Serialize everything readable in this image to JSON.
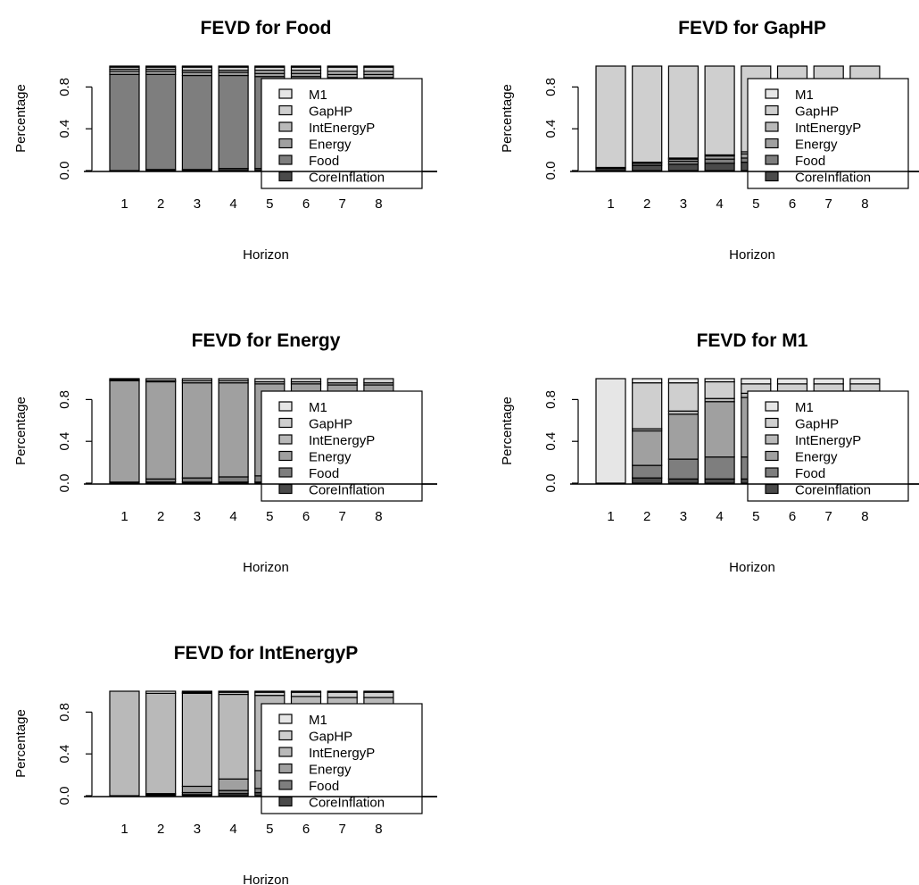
{
  "legend_labels": [
    "M1",
    "GapHP",
    "IntEnergyP",
    "Energy",
    "Food",
    "CoreInflation"
  ],
  "colors": {
    "M1": "#e6e6e6",
    "GapHP": "#cfcfcf",
    "IntEnergyP": "#b9b9b9",
    "Energy": "#a0a0a0",
    "Food": "#7e7e7e",
    "CoreInflation": "#4a4a4a"
  },
  "chart_data": [
    {
      "type": "bar",
      "stacked": true,
      "title": "FEVD for Food",
      "xlabel": "Horizon",
      "ylabel": "Percentage",
      "categories": [
        "1",
        "2",
        "3",
        "4",
        "5",
        "6",
        "7",
        "8"
      ],
      "yticks": [
        "0.0",
        "0.4",
        "0.8"
      ],
      "ylim": [
        0,
        1
      ],
      "legend_position": "bottom-right",
      "series": [
        {
          "name": "CoreInflation",
          "values": [
            0.0,
            0.01,
            0.01,
            0.02,
            0.02,
            0.02,
            0.02,
            0.02
          ]
        },
        {
          "name": "Food",
          "values": [
            0.92,
            0.91,
            0.9,
            0.89,
            0.88,
            0.88,
            0.87,
            0.87
          ]
        },
        {
          "name": "Energy",
          "values": [
            0.03,
            0.03,
            0.03,
            0.03,
            0.03,
            0.03,
            0.03,
            0.03
          ]
        },
        {
          "name": "IntEnergyP",
          "values": [
            0.02,
            0.02,
            0.02,
            0.02,
            0.03,
            0.03,
            0.03,
            0.03
          ]
        },
        {
          "name": "GapHP",
          "values": [
            0.02,
            0.02,
            0.03,
            0.03,
            0.03,
            0.03,
            0.04,
            0.04
          ]
        },
        {
          "name": "M1",
          "values": [
            0.01,
            0.01,
            0.01,
            0.01,
            0.01,
            0.01,
            0.01,
            0.01
          ]
        }
      ]
    },
    {
      "type": "bar",
      "stacked": true,
      "title": "FEVD for GapHP",
      "xlabel": "Horizon",
      "ylabel": "Percentage",
      "categories": [
        "1",
        "2",
        "3",
        "4",
        "5",
        "6",
        "7",
        "8"
      ],
      "yticks": [
        "0.0",
        "0.4",
        "0.8"
      ],
      "ylim": [
        0,
        1
      ],
      "legend_position": "bottom-right",
      "series": [
        {
          "name": "CoreInflation",
          "values": [
            0.02,
            0.05,
            0.06,
            0.07,
            0.08,
            0.08,
            0.08,
            0.08
          ]
        },
        {
          "name": "Food",
          "values": [
            0.01,
            0.02,
            0.03,
            0.04,
            0.04,
            0.05,
            0.05,
            0.05
          ]
        },
        {
          "name": "Energy",
          "values": [
            0.0,
            0.01,
            0.02,
            0.03,
            0.04,
            0.04,
            0.05,
            0.05
          ]
        },
        {
          "name": "IntEnergyP",
          "values": [
            0.0,
            0.0,
            0.01,
            0.01,
            0.02,
            0.02,
            0.02,
            0.02
          ]
        },
        {
          "name": "GapHP",
          "values": [
            0.97,
            0.92,
            0.88,
            0.85,
            0.82,
            0.81,
            0.8,
            0.8
          ]
        },
        {
          "name": "M1",
          "values": [
            0.0,
            0.0,
            0.0,
            0.0,
            0.0,
            0.0,
            0.0,
            0.0
          ]
        }
      ]
    },
    {
      "type": "bar",
      "stacked": true,
      "title": "FEVD for Energy",
      "xlabel": "Horizon",
      "ylabel": "Percentage",
      "categories": [
        "1",
        "2",
        "3",
        "4",
        "5",
        "6",
        "7",
        "8"
      ],
      "yticks": [
        "0.0",
        "0.4",
        "0.8"
      ],
      "ylim": [
        0,
        1
      ],
      "legend_position": "bottom-right",
      "series": [
        {
          "name": "CoreInflation",
          "values": [
            0.0,
            0.01,
            0.01,
            0.01,
            0.01,
            0.01,
            0.01,
            0.01
          ]
        },
        {
          "name": "Food",
          "values": [
            0.01,
            0.03,
            0.04,
            0.05,
            0.06,
            0.06,
            0.06,
            0.06
          ]
        },
        {
          "name": "Energy",
          "values": [
            0.97,
            0.93,
            0.91,
            0.9,
            0.88,
            0.88,
            0.87,
            0.87
          ]
        },
        {
          "name": "IntEnergyP",
          "values": [
            0.01,
            0.01,
            0.02,
            0.02,
            0.02,
            0.02,
            0.02,
            0.02
          ]
        },
        {
          "name": "GapHP",
          "values": [
            0.01,
            0.02,
            0.02,
            0.02,
            0.03,
            0.03,
            0.04,
            0.04
          ]
        },
        {
          "name": "M1",
          "values": [
            0.0,
            0.0,
            0.0,
            0.0,
            0.0,
            0.0,
            0.0,
            0.0
          ]
        }
      ]
    },
    {
      "type": "bar",
      "stacked": true,
      "title": "FEVD for M1",
      "xlabel": "Horizon",
      "ylabel": "Percentage",
      "categories": [
        "1",
        "2",
        "3",
        "4",
        "5",
        "6",
        "7",
        "8"
      ],
      "yticks": [
        "0.0",
        "0.4",
        "0.8"
      ],
      "ylim": [
        0,
        1
      ],
      "legend_position": "bottom-right",
      "series": [
        {
          "name": "CoreInflation",
          "values": [
            0.0,
            0.05,
            0.04,
            0.04,
            0.04,
            0.04,
            0.04,
            0.04
          ]
        },
        {
          "name": "Food",
          "values": [
            0.0,
            0.12,
            0.19,
            0.21,
            0.21,
            0.21,
            0.21,
            0.21
          ]
        },
        {
          "name": "Energy",
          "values": [
            0.0,
            0.33,
            0.43,
            0.53,
            0.57,
            0.58,
            0.58,
            0.58
          ]
        },
        {
          "name": "IntEnergyP",
          "values": [
            0.0,
            0.02,
            0.03,
            0.03,
            0.04,
            0.04,
            0.05,
            0.05
          ]
        },
        {
          "name": "GapHP",
          "values": [
            0.0,
            0.44,
            0.27,
            0.16,
            0.09,
            0.08,
            0.07,
            0.07
          ]
        },
        {
          "name": "M1",
          "values": [
            1.0,
            0.04,
            0.04,
            0.03,
            0.05,
            0.05,
            0.05,
            0.05
          ]
        }
      ]
    },
    {
      "type": "bar",
      "stacked": true,
      "title": "FEVD for IntEnergyP",
      "xlabel": "Horizon",
      "ylabel": "Percentage",
      "categories": [
        "1",
        "2",
        "3",
        "4",
        "5",
        "6",
        "7",
        "8"
      ],
      "yticks": [
        "0.0",
        "0.4",
        "0.8"
      ],
      "ylim": [
        0,
        1
      ],
      "legend_position": "bottom-right",
      "series": [
        {
          "name": "CoreInflation",
          "values": [
            0.0,
            0.0,
            0.01,
            0.02,
            0.03,
            0.03,
            0.03,
            0.03
          ]
        },
        {
          "name": "Food",
          "values": [
            0.0,
            0.01,
            0.02,
            0.03,
            0.04,
            0.05,
            0.05,
            0.05
          ]
        },
        {
          "name": "Energy",
          "values": [
            0.0,
            0.01,
            0.06,
            0.11,
            0.17,
            0.19,
            0.2,
            0.2
          ]
        },
        {
          "name": "IntEnergyP",
          "values": [
            1.0,
            0.96,
            0.89,
            0.81,
            0.72,
            0.68,
            0.66,
            0.66
          ]
        },
        {
          "name": "GapHP",
          "values": [
            0.0,
            0.0,
            0.01,
            0.02,
            0.03,
            0.04,
            0.05,
            0.05
          ]
        },
        {
          "name": "M1",
          "values": [
            0.0,
            0.02,
            0.01,
            0.01,
            0.01,
            0.01,
            0.01,
            0.01
          ]
        }
      ]
    }
  ]
}
